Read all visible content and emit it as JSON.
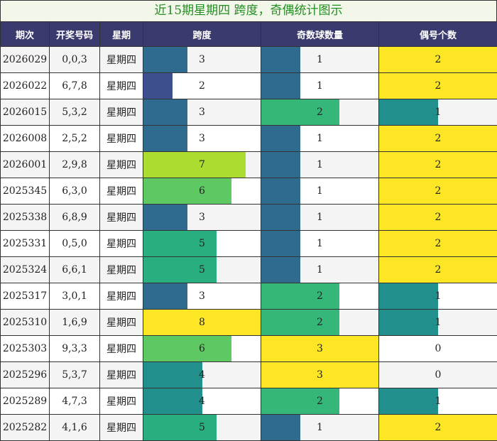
{
  "title": "近15期星期四 跨度，奇偶统计图示",
  "headers": [
    "期次",
    "开奖号码",
    "星期",
    "跨度",
    "奇数球数量",
    "偶号个数"
  ],
  "colors": {
    "span_scale": {
      "2": "#3d4f8f",
      "3": "#2f6b8e",
      "4": "#21908c",
      "5": "#29af7f",
      "6": "#5ec962",
      "7": "#addc30",
      "8": "#fde725"
    },
    "count_scale": {
      "0": "#ffffff",
      "1": "#2f6b8e",
      "2": "#21908c",
      "3": "#fde725"
    },
    "odd_scale": {
      "1": "#2f6b8e",
      "2": "#35b779",
      "3": "#fde725"
    },
    "even_scale": {
      "0": "#ffffff",
      "1": "#21908c",
      "2": "#fde725"
    }
  },
  "rows": [
    {
      "issue": "2026029",
      "numbers": "0,0,3",
      "weekday": "星期四",
      "span": 3,
      "odd": 1,
      "even": 2
    },
    {
      "issue": "2026022",
      "numbers": "6,7,8",
      "weekday": "星期四",
      "span": 2,
      "odd": 1,
      "even": 2
    },
    {
      "issue": "2026015",
      "numbers": "5,3,2",
      "weekday": "星期四",
      "span": 3,
      "odd": 2,
      "even": 1
    },
    {
      "issue": "2026008",
      "numbers": "2,5,2",
      "weekday": "星期四",
      "span": 3,
      "odd": 1,
      "even": 2
    },
    {
      "issue": "2026001",
      "numbers": "2,9,8",
      "weekday": "星期四",
      "span": 7,
      "odd": 1,
      "even": 2
    },
    {
      "issue": "2025345",
      "numbers": "6,3,0",
      "weekday": "星期四",
      "span": 6,
      "odd": 1,
      "even": 2
    },
    {
      "issue": "2025338",
      "numbers": "6,8,9",
      "weekday": "星期四",
      "span": 3,
      "odd": 1,
      "even": 2
    },
    {
      "issue": "2025331",
      "numbers": "0,5,0",
      "weekday": "星期四",
      "span": 5,
      "odd": 1,
      "even": 2
    },
    {
      "issue": "2025324",
      "numbers": "6,6,1",
      "weekday": "星期四",
      "span": 5,
      "odd": 1,
      "even": 2
    },
    {
      "issue": "2025317",
      "numbers": "3,0,1",
      "weekday": "星期四",
      "span": 3,
      "odd": 2,
      "even": 1
    },
    {
      "issue": "2025310",
      "numbers": "1,6,9",
      "weekday": "星期四",
      "span": 8,
      "odd": 2,
      "even": 1
    },
    {
      "issue": "2025303",
      "numbers": "9,3,3",
      "weekday": "星期四",
      "span": 6,
      "odd": 3,
      "even": 0
    },
    {
      "issue": "2025296",
      "numbers": "5,3,7",
      "weekday": "星期四",
      "span": 4,
      "odd": 3,
      "even": 0
    },
    {
      "issue": "2025289",
      "numbers": "4,7,3",
      "weekday": "星期四",
      "span": 4,
      "odd": 2,
      "even": 1
    },
    {
      "issue": "2025282",
      "numbers": "4,1,6",
      "weekday": "星期四",
      "span": 5,
      "odd": 1,
      "even": 2
    }
  ]
}
